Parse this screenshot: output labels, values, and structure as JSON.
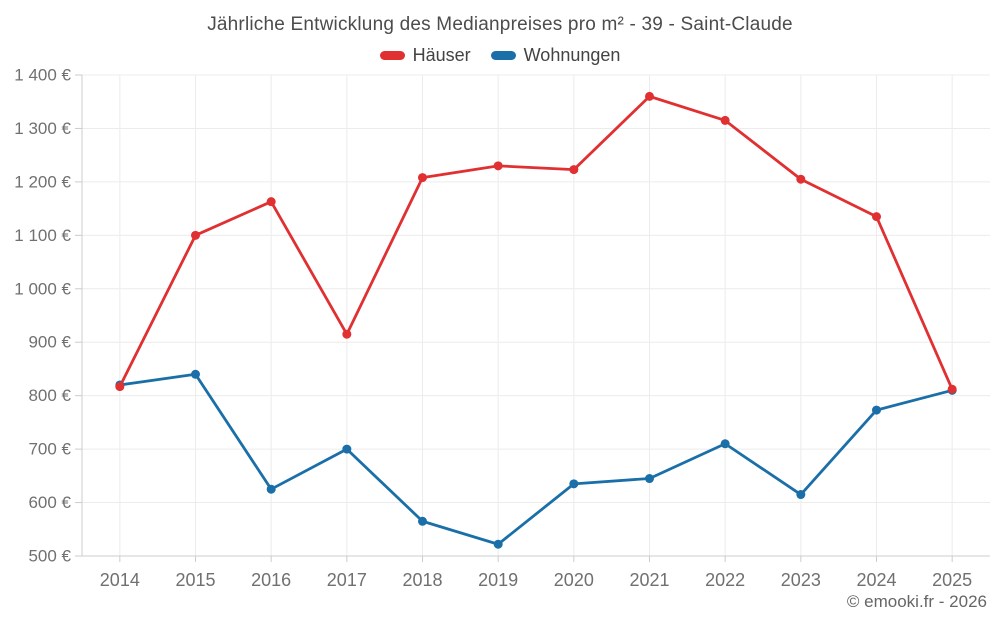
{
  "header": {
    "title": "Jährliche Entwicklung des Medianpreises pro m² - 39 - Saint-Claude"
  },
  "footer": {
    "copyright": "© emooki.fr - 2026"
  },
  "colors": {
    "haeuser": "#e03031",
    "wohnungen": "#1a6fa8",
    "grid_line": "#ececec",
    "axis_line": "#cccccc",
    "axis_label_text": "#707070",
    "title_text": "#4c4c4c"
  },
  "chart_data": {
    "type": "line",
    "title": "Jährliche Entwicklung des Medianpreises pro m² - 39 - Saint-Claude",
    "categories": [
      "2014",
      "2015",
      "2016",
      "2017",
      "2018",
      "2019",
      "2020",
      "2021",
      "2022",
      "2023",
      "2024",
      "2025"
    ],
    "series": [
      {
        "name": "Häuser",
        "color": "#e03031",
        "values": [
          817,
          1100,
          1163,
          915,
          1208,
          1230,
          1223,
          1360,
          1315,
          1205,
          1135,
          812
        ]
      },
      {
        "name": "Wohnungen",
        "color": "#1a6fa8",
        "values": [
          820,
          840,
          625,
          700,
          565,
          522,
          635,
          645,
          710,
          615,
          773,
          810
        ]
      }
    ],
    "xlabel": "",
    "ylabel": "",
    "ylim": [
      500,
      1400
    ],
    "ytick_step": 100,
    "ytick_suffix": " €",
    "grid": true,
    "legend_position": "top"
  }
}
